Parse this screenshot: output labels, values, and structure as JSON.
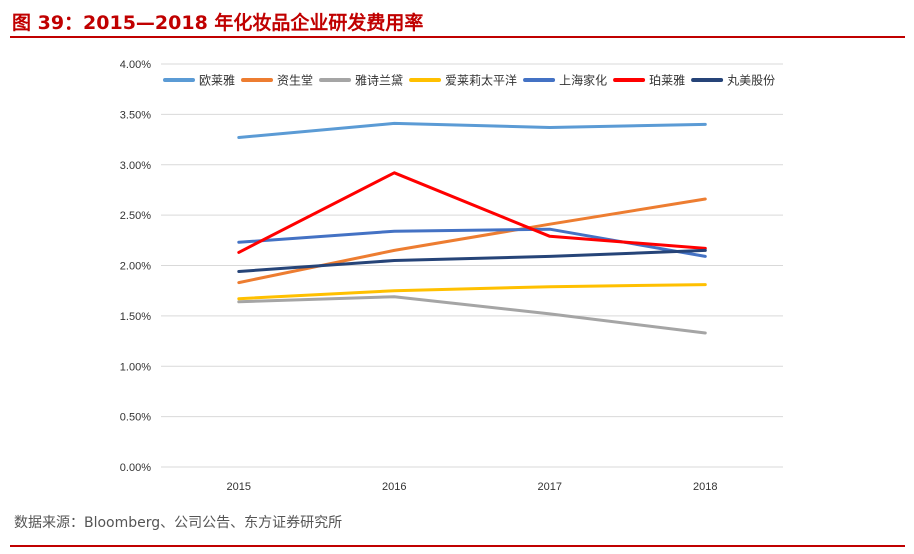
{
  "title": "图 39：2015—2018 年化妆品企业研发费用率",
  "source": "数据来源：Bloomberg、公司公告、东方证券研究所",
  "chart_data": {
    "type": "line",
    "title": "",
    "xlabel": "",
    "ylabel": "",
    "categories": [
      "2015",
      "2016",
      "2017",
      "2018"
    ],
    "ylim": [
      0,
      4.0
    ],
    "y_ticks": [
      "0.00%",
      "0.50%",
      "1.00%",
      "1.50%",
      "2.00%",
      "2.50%",
      "3.00%",
      "3.50%",
      "4.00%"
    ],
    "grid": "horizontal",
    "legend_position": "top",
    "series": [
      {
        "name": "欧莱雅",
        "color": "#5b9bd5",
        "values": [
          3.27,
          3.41,
          3.37,
          3.4
        ]
      },
      {
        "name": "资生堂",
        "color": "#ed7d31",
        "values": [
          1.83,
          2.15,
          2.41,
          2.66
        ]
      },
      {
        "name": "雅诗兰黛",
        "color": "#a5a5a5",
        "values": [
          1.64,
          1.69,
          1.52,
          1.33
        ]
      },
      {
        "name": "爱莱莉太平洋",
        "color": "#ffc000",
        "values": [
          1.67,
          1.75,
          1.79,
          1.81
        ]
      },
      {
        "name": "上海家化",
        "color": "#4472c4",
        "values": [
          2.23,
          2.34,
          2.36,
          2.09
        ]
      },
      {
        "name": "珀莱雅",
        "color": "#ff0000",
        "values": [
          2.13,
          2.92,
          2.29,
          2.17
        ]
      },
      {
        "name": "丸美股份",
        "color": "#264478",
        "values": [
          1.94,
          2.05,
          2.09,
          2.15
        ]
      }
    ]
  }
}
